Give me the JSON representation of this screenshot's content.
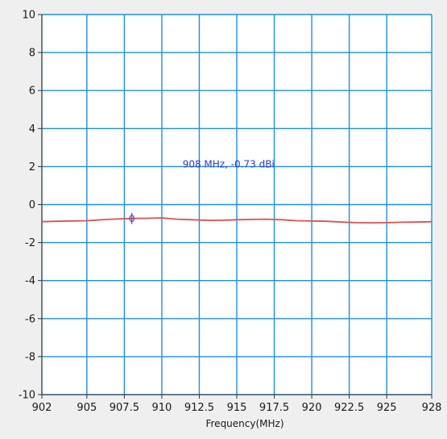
{
  "chart_data": {
    "type": "line",
    "title": "",
    "xlabel": "Frequency(MHz)",
    "ylabel": "",
    "xlim": [
      902,
      928
    ],
    "ylim": [
      -10,
      10
    ],
    "x_ticks": [
      902,
      905,
      907.5,
      910,
      912.5,
      915,
      917.5,
      920,
      922.5,
      925,
      928
    ],
    "x_tick_labels": [
      "902",
      "905",
      "907.5",
      "910",
      "912.5",
      "915",
      "917.5",
      "920",
      "922.5",
      "925",
      "928"
    ],
    "y_ticks": [
      10,
      8,
      6,
      4,
      2,
      0,
      -2,
      -4,
      -6,
      -8,
      -10
    ],
    "y_tick_labels": [
      "10",
      "8",
      "6",
      "4",
      "2",
      "0",
      "-2",
      "-4",
      "-6",
      "-8",
      "-10"
    ],
    "grid": true,
    "series": [
      {
        "x": [
          902,
          903,
          904,
          905,
          906,
          907,
          908,
          909,
          910,
          911,
          912,
          913,
          914,
          915,
          916,
          917,
          918,
          919,
          920,
          921,
          922,
          923,
          924,
          925,
          926,
          927,
          928
        ],
        "y": [
          -0.9,
          -0.88,
          -0.86,
          -0.85,
          -0.8,
          -0.76,
          -0.73,
          -0.72,
          -0.7,
          -0.77,
          -0.8,
          -0.83,
          -0.83,
          -0.8,
          -0.78,
          -0.77,
          -0.8,
          -0.85,
          -0.86,
          -0.88,
          -0.92,
          -0.95,
          -0.96,
          -0.95,
          -0.93,
          -0.92,
          -0.9
        ]
      }
    ],
    "marker": {
      "x": 908,
      "y": -0.73
    },
    "annotation": {
      "text": "908 MHz, -0.73 dBi",
      "x": 908,
      "y": -0.73
    },
    "colors": {
      "plot_bg": "#ffffff",
      "grid": "#1f8fe0",
      "line": "#d9534f",
      "marker": "#4a4fd6",
      "annotation": "#2b3ad6"
    }
  }
}
